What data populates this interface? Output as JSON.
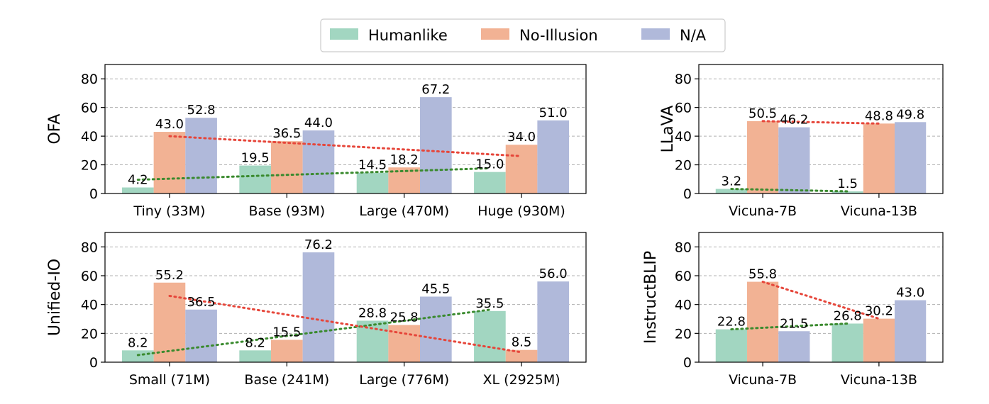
{
  "legend": {
    "placement": "top-center",
    "items": [
      {
        "label": "Humanlike",
        "color": "#a2d6c1"
      },
      {
        "label": "No-Illusion",
        "color": "#f2b294"
      },
      {
        "label": "N/A",
        "color": "#b0b9da"
      }
    ]
  },
  "chart_data": [
    {
      "type": "bar",
      "ylabel": "OFA",
      "ylim": [
        0,
        90
      ],
      "yticks": [
        0,
        20,
        40,
        60,
        80
      ],
      "grid": "y-dashed",
      "categories": [
        "Tiny (33M)",
        "Base (93M)",
        "Large (470M)",
        "Huge (930M)"
      ],
      "series": [
        {
          "name": "Humanlike",
          "values": [
            4.2,
            19.5,
            14.5,
            15.0
          ],
          "labels": [
            "4.2",
            "19.5",
            "14.5",
            "15.0"
          ]
        },
        {
          "name": "No-Illusion",
          "values": [
            43.0,
            36.5,
            18.2,
            34.0
          ],
          "labels": [
            "43.0",
            "36.5",
            "18.2",
            "34.0"
          ]
        },
        {
          "name": "N/A",
          "values": [
            52.8,
            44.0,
            67.2,
            51.0
          ],
          "labels": [
            "52.8",
            "44.0",
            "67.2",
            "51.0"
          ]
        }
      ],
      "trend_lines": [
        {
          "series": "Humanlike",
          "color": "#3a8a2e",
          "from": 9.6,
          "to": 17.6
        },
        {
          "series": "No-Illusion",
          "color": "#e6463a",
          "from": 40.0,
          "to": 26.1
        }
      ]
    },
    {
      "type": "bar",
      "ylabel": "LLaVA",
      "ylim": [
        0,
        90
      ],
      "yticks": [
        0,
        20,
        40,
        60,
        80
      ],
      "grid": "y-dashed",
      "categories": [
        "Vicuna-7B",
        "Vicuna-13B"
      ],
      "series": [
        {
          "name": "Humanlike",
          "values": [
            3.2,
            1.5
          ],
          "labels": [
            "3.2",
            "1.5"
          ]
        },
        {
          "name": "No-Illusion",
          "values": [
            50.5,
            48.8
          ],
          "labels": [
            "50.5",
            "48.8"
          ]
        },
        {
          "name": "N/A",
          "values": [
            46.2,
            49.8
          ],
          "labels": [
            "46.2",
            "49.8"
          ]
        }
      ],
      "trend_lines": [
        {
          "series": "Humanlike",
          "color": "#3a8a2e",
          "from": 3.2,
          "to": 1.5
        },
        {
          "series": "No-Illusion",
          "color": "#e6463a",
          "from": 50.5,
          "to": 48.8
        }
      ]
    },
    {
      "type": "bar",
      "ylabel": "Unified-IO",
      "ylim": [
        0,
        90
      ],
      "yticks": [
        0,
        20,
        40,
        60,
        80
      ],
      "grid": "y-dashed",
      "categories": [
        "Small (71M)",
        "Base (241M)",
        "Large (776M)",
        "XL (2925M)"
      ],
      "series": [
        {
          "name": "Humanlike",
          "values": [
            8.2,
            8.2,
            28.8,
            35.5
          ],
          "labels": [
            "8.2",
            "8.2",
            "28.8",
            "35.5"
          ]
        },
        {
          "name": "No-Illusion",
          "values": [
            55.2,
            15.5,
            25.8,
            8.5
          ],
          "labels": [
            "55.2",
            "15.5",
            "25.8",
            "8.5"
          ]
        },
        {
          "name": "N/A",
          "values": [
            36.5,
            76.2,
            45.5,
            56.0
          ],
          "labels": [
            "36.5",
            "76.2",
            "45.5",
            "56.0"
          ]
        }
      ],
      "trend_lines": [
        {
          "series": "Humanlike",
          "color": "#3a8a2e",
          "from": 4.9,
          "to": 36.4
        },
        {
          "series": "No-Illusion",
          "color": "#e6463a",
          "from": 46.0,
          "to": 6.9
        }
      ]
    },
    {
      "type": "bar",
      "ylabel": "InstructBLIP",
      "ylim": [
        0,
        90
      ],
      "yticks": [
        0,
        20,
        40,
        60,
        80
      ],
      "grid": "y-dashed",
      "categories": [
        "Vicuna-7B",
        "Vicuna-13B"
      ],
      "series": [
        {
          "name": "Humanlike",
          "values": [
            22.8,
            26.8
          ],
          "labels": [
            "22.8",
            "26.8"
          ]
        },
        {
          "name": "No-Illusion",
          "values": [
            55.8,
            30.2
          ],
          "labels": [
            "55.8",
            "30.2"
          ]
        },
        {
          "name": "N/A",
          "values": [
            21.5,
            43.0
          ],
          "labels": [
            "21.5",
            "43.0"
          ]
        }
      ],
      "trend_lines": [
        {
          "series": "Humanlike",
          "color": "#3a8a2e",
          "from": 22.8,
          "to": 26.8
        },
        {
          "series": "No-Illusion",
          "color": "#e6463a",
          "from": 55.8,
          "to": 30.2
        }
      ]
    }
  ]
}
